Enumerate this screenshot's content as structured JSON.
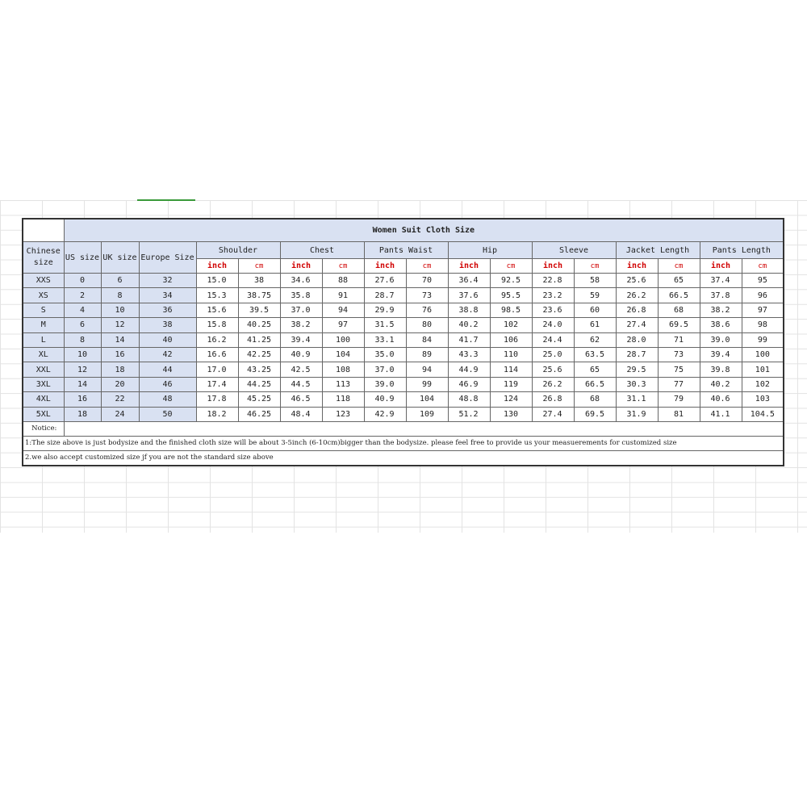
{
  "table": {
    "title": "Women Suit Cloth Size",
    "fixed_headers": [
      "Chinese size",
      "US size",
      "UK size",
      "Europe Size"
    ],
    "groups": [
      "Shoulder",
      "Chest",
      "Pants Waist",
      "Hip",
      "Sleeve",
      "Jacket Length",
      "Pants Length"
    ],
    "unit_inch": "inch",
    "unit_cm": "cm",
    "rows": [
      [
        "XXS",
        "0",
        "6",
        "32",
        "15.0",
        "38",
        "34.6",
        "88",
        "27.6",
        "70",
        "36.4",
        "92.5",
        "22.8",
        "58",
        "25.6",
        "65",
        "37.4",
        "95"
      ],
      [
        "XS",
        "2",
        "8",
        "34",
        "15.3",
        "38.75",
        "35.8",
        "91",
        "28.7",
        "73",
        "37.6",
        "95.5",
        "23.2",
        "59",
        "26.2",
        "66.5",
        "37.8",
        "96"
      ],
      [
        "S",
        "4",
        "10",
        "36",
        "15.6",
        "39.5",
        "37.0",
        "94",
        "29.9",
        "76",
        "38.8",
        "98.5",
        "23.6",
        "60",
        "26.8",
        "68",
        "38.2",
        "97"
      ],
      [
        "M",
        "6",
        "12",
        "38",
        "15.8",
        "40.25",
        "38.2",
        "97",
        "31.5",
        "80",
        "40.2",
        "102",
        "24.0",
        "61",
        "27.4",
        "69.5",
        "38.6",
        "98"
      ],
      [
        "L",
        "8",
        "14",
        "40",
        "16.2",
        "41.25",
        "39.4",
        "100",
        "33.1",
        "84",
        "41.7",
        "106",
        "24.4",
        "62",
        "28.0",
        "71",
        "39.0",
        "99"
      ],
      [
        "XL",
        "10",
        "16",
        "42",
        "16.6",
        "42.25",
        "40.9",
        "104",
        "35.0",
        "89",
        "43.3",
        "110",
        "25.0",
        "63.5",
        "28.7",
        "73",
        "39.4",
        "100"
      ],
      [
        "XXL",
        "12",
        "18",
        "44",
        "17.0",
        "43.25",
        "42.5",
        "108",
        "37.0",
        "94",
        "44.9",
        "114",
        "25.6",
        "65",
        "29.5",
        "75",
        "39.8",
        "101"
      ],
      [
        "3XL",
        "14",
        "20",
        "46",
        "17.4",
        "44.25",
        "44.5",
        "113",
        "39.0",
        "99",
        "46.9",
        "119",
        "26.2",
        "66.5",
        "30.3",
        "77",
        "40.2",
        "102"
      ],
      [
        "4XL",
        "16",
        "22",
        "48",
        "17.8",
        "45.25",
        "46.5",
        "118",
        "40.9",
        "104",
        "48.8",
        "124",
        "26.8",
        "68",
        "31.1",
        "79",
        "40.6",
        "103"
      ],
      [
        "5XL",
        "18",
        "24",
        "50",
        "18.2",
        "46.25",
        "48.4",
        "123",
        "42.9",
        "109",
        "51.2",
        "130",
        "27.4",
        "69.5",
        "31.9",
        "81",
        "41.1",
        "104.5"
      ]
    ],
    "notice_label": "Notice:",
    "notes": [
      "1:The size above is just bodysize and the finished cloth size will be about 3-5inch (6-10cm)bigger than the bodysize. please feel free to provide us your measuerements for customized size",
      "2.we also accept customized size jf you are not the standard size above"
    ]
  },
  "colors": {
    "header_fill": "#d9e1f2",
    "unit_text": "#d00000",
    "selection": "#3a9a3a"
  }
}
